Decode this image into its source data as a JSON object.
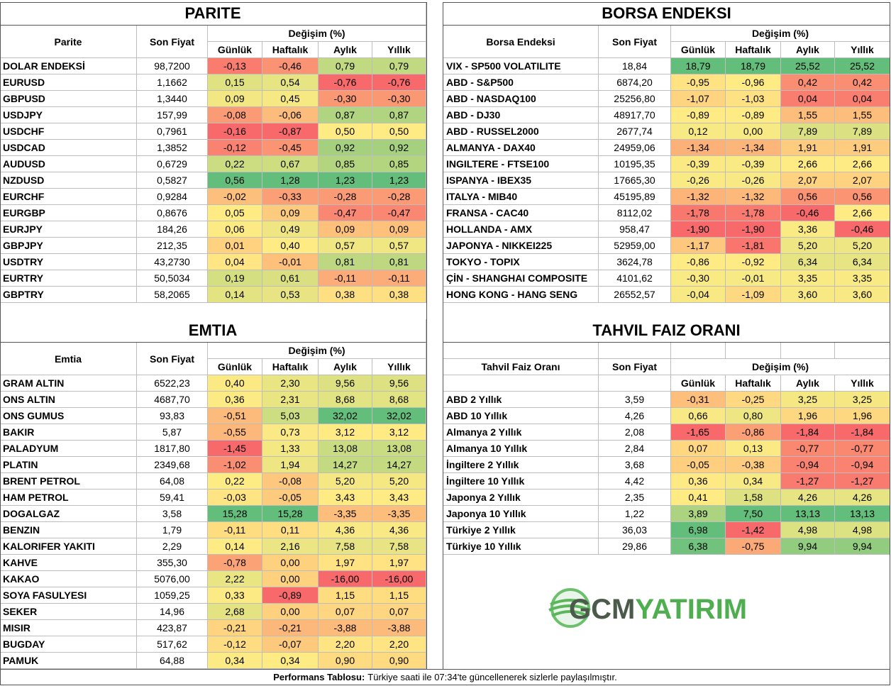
{
  "parite": {
    "title": "PARITE",
    "columns": [
      "Parite",
      "Son Fiyat"
    ],
    "group": "Değişim (%)",
    "sub": [
      "Günlük",
      "Haftalık",
      "Aylık",
      "Yıllık"
    ],
    "rows": [
      [
        "DOLAR ENDEKSİ",
        "98,7200",
        "-0,13",
        "-0,46",
        "0,79",
        "0,79"
      ],
      [
        "EURUSD",
        "1,1662",
        "0,15",
        "0,54",
        "-0,76",
        "-0,76"
      ],
      [
        "GBPUSD",
        "1,3440",
        "0,09",
        "0,45",
        "-0,30",
        "-0,30"
      ],
      [
        "USDJPY",
        "157,99",
        "-0,08",
        "-0,06",
        "0,87",
        "0,87"
      ],
      [
        "USDCHF",
        "0,7961",
        "-0,16",
        "-0,87",
        "0,50",
        "0,50"
      ],
      [
        "USDCAD",
        "1,3852",
        "-0,12",
        "-0,45",
        "0,92",
        "0,92"
      ],
      [
        "AUDUSD",
        "0,6729",
        "0,22",
        "0,67",
        "0,85",
        "0,85"
      ],
      [
        "NZDUSD",
        "0,5827",
        "0,56",
        "1,28",
        "1,23",
        "1,23"
      ],
      [
        "EURCHF",
        "0,9284",
        "-0,02",
        "-0,33",
        "-0,28",
        "-0,28"
      ],
      [
        "EURGBP",
        "0,8676",
        "0,05",
        "0,09",
        "-0,47",
        "-0,47"
      ],
      [
        "EURJPY",
        "184,26",
        "0,06",
        "0,49",
        "0,09",
        "0,09"
      ],
      [
        "GBPJPY",
        "212,35",
        "0,01",
        "0,40",
        "0,57",
        "0,57"
      ],
      [
        "USDTRY",
        "43,2730",
        "0,04",
        "-0,01",
        "0,81",
        "0,81"
      ],
      [
        "EURTRY",
        "50,5034",
        "0,19",
        "0,61",
        "-0,11",
        "-0,11"
      ],
      [
        "GBPTRY",
        "58,2065",
        "0,14",
        "0,53",
        "0,38",
        "0,38"
      ]
    ]
  },
  "borsa": {
    "title": "BORSA ENDEKSI",
    "columns": [
      "Borsa Endeksi",
      "Son Fiyat"
    ],
    "group": "Değişim (%)",
    "sub": [
      "Günlük",
      "Haftalık",
      "Aylık",
      "Yıllık"
    ],
    "rows": [
      [
        "VIX  - SP500 VOLATILITE",
        "18,84",
        "18,79",
        "18,79",
        "25,52",
        "25,52"
      ],
      [
        "ABD - S&P500",
        "6874,20",
        "-0,95",
        "-0,96",
        "0,42",
        "0,42"
      ],
      [
        "ABD - NASDAQ100",
        "25256,80",
        "-1,07",
        "-1,03",
        "0,04",
        "0,04"
      ],
      [
        "ABD - DJ30",
        "48917,70",
        "-0,89",
        "-0,89",
        "1,55",
        "1,55"
      ],
      [
        "ABD - RUSSEL2000",
        "2677,74",
        "0,12",
        "0,00",
        "7,89",
        "7,89"
      ],
      [
        "ALMANYA - DAX40",
        "24959,06",
        "-1,34",
        "-1,34",
        "1,91",
        "1,91"
      ],
      [
        "INGILTERE - FTSE100",
        "10195,35",
        "-0,39",
        "-0,39",
        "2,66",
        "2,66"
      ],
      [
        "ISPANYA - IBEX35",
        "17665,30",
        "-0,26",
        "-0,26",
        "2,07",
        "2,07"
      ],
      [
        "ITALYA - MIB40",
        "45195,89",
        "-1,32",
        "-1,32",
        "0,56",
        "0,56"
      ],
      [
        "FRANSA - CAC40",
        "8112,02",
        "-1,78",
        "-1,78",
        "-0,46",
        "2,66"
      ],
      [
        "HOLLANDA - AMX",
        "958,47",
        "-1,90",
        "-1,90",
        "3,36",
        "-0,46"
      ],
      [
        "JAPONYA - NIKKEI225",
        "52959,00",
        "-1,17",
        "-1,81",
        "5,20",
        "5,20"
      ],
      [
        "TOKYO - TOPIX",
        "3624,78",
        "-0,86",
        "-0,92",
        "6,34",
        "6,34"
      ],
      [
        "ÇİN - SHANGHAI COMPOSITE",
        "4101,62",
        "-0,30",
        "-0,01",
        "3,35",
        "3,35"
      ],
      [
        "HONG KONG - HANG SENG",
        "26552,57",
        "-0,04",
        "-1,09",
        "3,60",
        "3,60"
      ]
    ]
  },
  "emtia": {
    "title": "EMTIA",
    "columns": [
      "Emtia",
      "Son Fiyat"
    ],
    "group": "Değişim (%)",
    "sub": [
      "Günlük",
      "Haftalık",
      "Aylık",
      "Yıllık"
    ],
    "rows": [
      [
        "GRAM ALTIN",
        "6522,23",
        "0,40",
        "2,30",
        "9,56",
        "9,56"
      ],
      [
        "ONS ALTIN",
        "4687,70",
        "0,36",
        "2,31",
        "8,68",
        "8,68"
      ],
      [
        "ONS GUMUS",
        "93,83",
        "-0,51",
        "5,03",
        "32,02",
        "32,02"
      ],
      [
        "BAKIR",
        "5,87",
        "-0,55",
        "0,73",
        "3,12",
        "3,12"
      ],
      [
        "PALADYUM",
        "1817,80",
        "-1,45",
        "1,33",
        "13,08",
        "13,08"
      ],
      [
        "PLATIN",
        "2349,68",
        "-1,02",
        "1,94",
        "14,27",
        "14,27"
      ],
      [
        "BRENT PETROL",
        "64,08",
        "0,22",
        "-0,08",
        "5,20",
        "5,20"
      ],
      [
        "HAM PETROL",
        "59,41",
        "-0,03",
        "-0,05",
        "3,43",
        "3,43"
      ],
      [
        "DOGALGAZ",
        "3,58",
        "15,28",
        "15,28",
        "-3,35",
        "-3,35"
      ],
      [
        "BENZIN",
        "1,79",
        "-0,11",
        "0,11",
        "4,36",
        "4,36"
      ],
      [
        "KALORIFER YAKITI",
        "2,29",
        "0,14",
        "2,16",
        "7,58",
        "7,58"
      ],
      [
        "KAHVE",
        "355,30",
        "-0,78",
        "0,00",
        "1,97",
        "1,97"
      ],
      [
        "KAKAO",
        "5076,00",
        "2,22",
        "0,00",
        "-16,00",
        "-16,00"
      ],
      [
        "SOYA FASULYESI",
        "1059,25",
        "0,33",
        "-0,89",
        "1,15",
        "1,15"
      ],
      [
        "SEKER",
        "14,96",
        "2,68",
        "0,00",
        "0,07",
        "0,07"
      ],
      [
        "MISIR",
        "423,87",
        "-0,21",
        "-0,21",
        "-3,88",
        "-3,88"
      ],
      [
        "BUGDAY",
        "517,62",
        "-0,12",
        "-0,07",
        "2,20",
        "2,20"
      ],
      [
        "PAMUK",
        "64,88",
        "0,34",
        "0,34",
        "0,90",
        "0,90"
      ]
    ]
  },
  "tahvil": {
    "title": "TAHVIL FAIZ ORANI",
    "columns": [
      "Tahvil Faiz Oranı",
      "Son Fiyat"
    ],
    "group": "Değişim (%)",
    "sub": [
      "Günlük",
      "Haftalık",
      "Aylık",
      "Yıllık"
    ],
    "rows": [
      [
        "ABD 2 Yıllık",
        "3,59",
        "-0,31",
        "-0,25",
        "3,25",
        "3,25"
      ],
      [
        "ABD 10 Yıllık",
        "4,26",
        "0,66",
        "0,80",
        "1,96",
        "1,96"
      ],
      [
        "Almanya 2 Yıllık",
        "2,08",
        "-1,65",
        "-0,86",
        "-1,84",
        "-1,84"
      ],
      [
        "Almanya 10 Yıllık",
        "2,84",
        "0,07",
        "0,13",
        "-0,77",
        "-0,77"
      ],
      [
        "İngiltere 2 Yıllık",
        "3,68",
        "-0,05",
        "-0,38",
        "-0,94",
        "-0,94"
      ],
      [
        "İngiltere 10 Yıllık",
        "4,42",
        "0,36",
        "0,34",
        "-1,27",
        "-1,27"
      ],
      [
        "Japonya 2 Yıllık",
        "2,35",
        "0,41",
        "1,58",
        "4,26",
        "4,26"
      ],
      [
        "Japonya 10 Yıllık",
        "1,22",
        "3,89",
        "7,50",
        "13,13",
        "13,13"
      ],
      [
        "Türkiye 2 Yıllık",
        "36,03",
        "6,98",
        "-1,42",
        "4,98",
        "4,98"
      ],
      [
        "Türkiye 10 Yıllık",
        "29,86",
        "6,38",
        "-0,75",
        "9,94",
        "9,94"
      ]
    ]
  },
  "logo": {
    "part1": "GCM",
    "part2": "YATIRIM"
  },
  "footer": {
    "label": "Performans Tablosu:",
    "text": "Türkiye saati ile 07:34'te güncellenerek sizlerle paylaşılmıştır."
  }
}
